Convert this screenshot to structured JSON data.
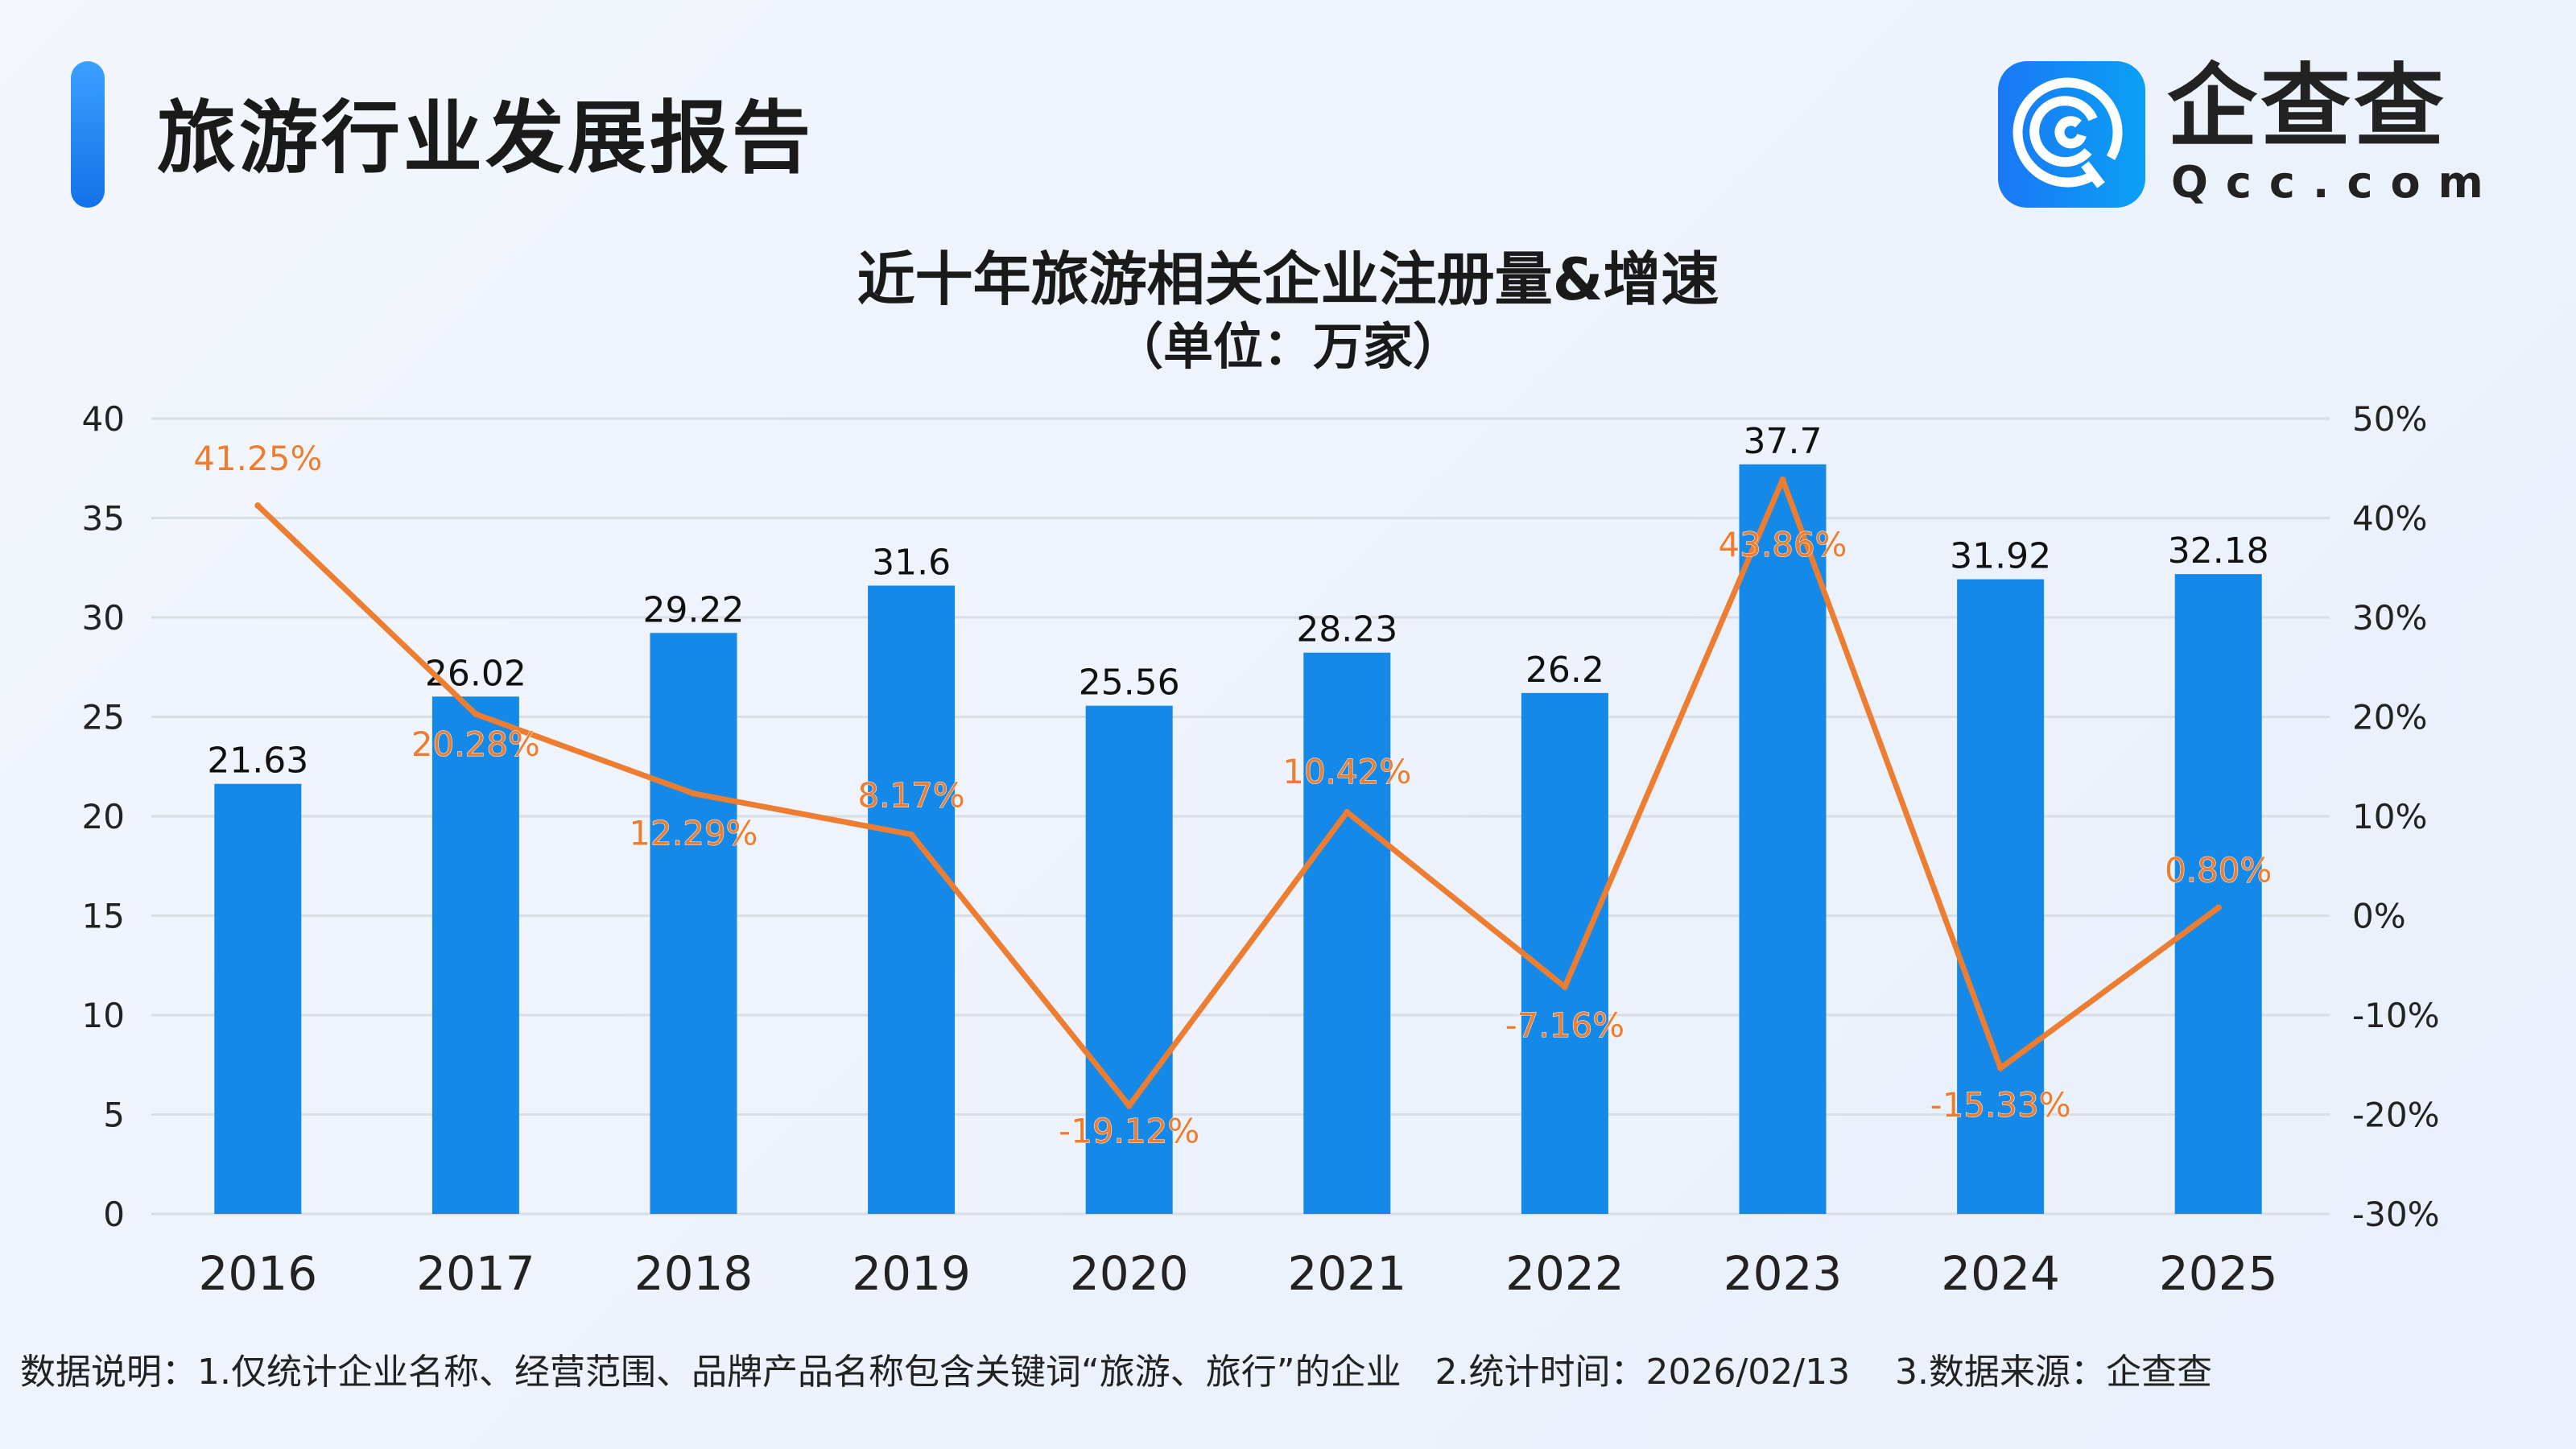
{
  "header": {
    "title": "旅游行业发展报告",
    "logo_cn": "企查查",
    "logo_en": "Qcc.com"
  },
  "colors": {
    "bar": "#1589E8",
    "line": "#ED7D31",
    "grid": "#d9dde4",
    "accent": "#1a78f5"
  },
  "chart_data": {
    "type": "bar+line",
    "title": "近十年旅游相关企业注册量&增速",
    "subtitle": "（单位：万家）",
    "categories": [
      "2016",
      "2017",
      "2018",
      "2019",
      "2020",
      "2021",
      "2022",
      "2023",
      "2024",
      "2025"
    ],
    "series": [
      {
        "type": "bar",
        "axis": "left",
        "values": [
          21.63,
          26.02,
          29.22,
          31.6,
          25.56,
          28.23,
          26.2,
          37.7,
          31.92,
          32.18
        ],
        "labels": [
          "21.63",
          "26.02",
          "29.22",
          "31.6",
          "25.56",
          "28.23",
          "26.2",
          "37.7",
          "31.92",
          "32.18"
        ]
      },
      {
        "type": "line",
        "axis": "right",
        "values": [
          41.25,
          20.28,
          12.29,
          8.17,
          -19.12,
          10.42,
          -7.16,
          43.86,
          -15.33,
          0.8
        ],
        "labels": [
          "41.25%",
          "20.28%",
          "12.29%",
          "8.17%",
          "-19.12%",
          "10.42%",
          "-7.16%",
          "43.86%",
          "-15.33%",
          "0.80%"
        ]
      }
    ],
    "left_axis": {
      "ylim": [
        0,
        40
      ],
      "ticks": [
        "0",
        "5",
        "10",
        "15",
        "20",
        "25",
        "30",
        "35",
        "40"
      ]
    },
    "right_axis": {
      "ylim": [
        -30,
        50
      ],
      "ticks": [
        "-30%",
        "-20%",
        "-10%",
        "0%",
        "10%",
        "20%",
        "30%",
        "40%",
        "50%"
      ]
    },
    "grid": true,
    "legend": "none"
  },
  "footer": {
    "note": "数据说明：1.仅统计企业名称、经营范围、品牌产品名称包含关键词“旅游、旅行”的企业   2.统计时间：2026/02/13    3.数据来源：企查查"
  }
}
